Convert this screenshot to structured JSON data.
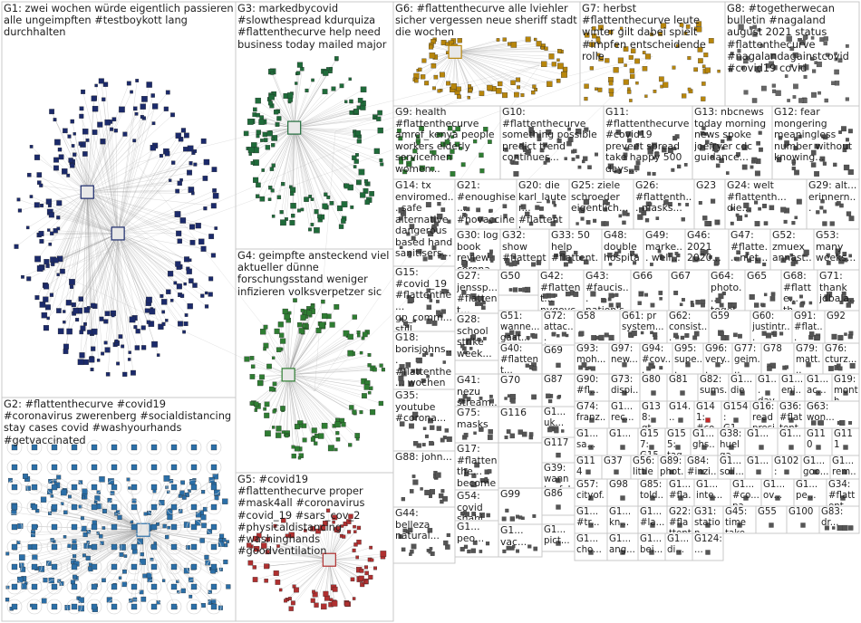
{
  "title": "",
  "groups": [
    {
      "label": "G1: zwei wochen würde eigentlich passieren alle ungeimpften #testboykott lang durchhalten",
      "col": "#1b2a6b"
    },
    {
      "label": "G2: #flattenthecurve #covid19 #coronavirus zwerenberg #socialdistancing stay cases covid #washyourhands #getvaccinated",
      "col": "#2b6fa8"
    },
    {
      "label": "G3: markedbycovid #slowthespread kdurquiza #flattenthecurve help need business today mailed major",
      "col": "#1f6b3a"
    },
    {
      "label": "G4: geimpfte ansteckend viel aktueller dünne forschungsstand weniger infizieren volksverpetzer sic",
      "col": "#2e7d32"
    },
    {
      "label": "G5: #covid19 #flattenthecurve proper #mask4all #coronavirus #covid_19 #sars_cov_2 #physicaldistancing #washinghands #goodventilation",
      "col": "#b03030"
    },
    {
      "label": "G6: #flattenthecurve alle lviehler sicher vergessen neue sheriff stadt die wochen",
      "col": "#b8860b"
    },
    {
      "label": "G7: herbst #flattenthecurve leute winter gilt dabei spielt #impfen entscheidende rolle",
      "col": "#b8860b"
    },
    {
      "label": "G8: #togetherwecan bulletin #nagaland august 2021 status #flattenthecurve #nagalandagainstcovid #covid19 covid",
      "col": "#666666"
    },
    {
      "label": "G9: health #flattenthecurve amref_kenya people workers elderly servicemen women...",
      "col": "#2e7d32"
    },
    {
      "label": "G10: #flattenthecurve something possible predict trend continues...",
      "col": "#555555"
    },
    {
      "label": "G11: #flattenthecurve #covid19 prevent spread take happy 500 days...",
      "col": "#555555"
    },
    {
      "label": "G13: nbcnews today morning news spoke joefryer cdc guidance...",
      "col": "#555555"
    },
    {
      "label": "G12: fear mongering meaningless number without knowing...",
      "col": "#555555"
    },
    {
      "label": "G14: tx enviromed... safe alternative dangerous based hand sanitisers...",
      "col": "#555555"
    },
    {
      "label": "G21: #enoughise... #novaccine...",
      "col": "#555555"
    },
    {
      "label": "G20: die karl_lauter... #flattenthec...",
      "col": "#555555"
    },
    {
      "label": "G25: ziele schroeder eigentlich...",
      "col": "#555555"
    },
    {
      "label": "G26: #flattenth... masks...",
      "col": "#555555"
    },
    {
      "label": "G23",
      "col": "#555555"
    },
    {
      "label": "G24: welt #flattenth... die...",
      "col": "#555555"
    },
    {
      "label": "G29: alt... erinnern...",
      "col": "#555555"
    },
    {
      "label": "G15: #covid_19 #flattenthe... gp_comm... still...",
      "col": "#555555"
    },
    {
      "label": "G30: log book review corona...",
      "col": "#555555"
    },
    {
      "label": "G32: show #flattent...",
      "col": "#555555"
    },
    {
      "label": "G33: 50 help #flattent...",
      "col": "#555555"
    },
    {
      "label": "G48: double hospita...",
      "col": "#555555"
    },
    {
      "label": "G49: marke... well...",
      "col": "#555555"
    },
    {
      "label": "G46: 2021 2020...",
      "col": "#555555"
    },
    {
      "label": "G47: #flatte... niet...",
      "col": "#555555"
    },
    {
      "label": "G52: zmuex annast...",
      "col": "#555555"
    },
    {
      "label": "G53: many weeks...",
      "col": "#555555"
    },
    {
      "label": "G27: jenssp... #flattent... man...",
      "col": "#555555"
    },
    {
      "label": "G50",
      "col": "#555555"
    },
    {
      "label": "G42: #flattent... nygovc...",
      "col": "#555555"
    },
    {
      "label": "G43: #faucis... nation's...",
      "col": "#555555"
    },
    {
      "label": "G66",
      "col": "#555555"
    },
    {
      "label": "G67",
      "col": "#555555"
    },
    {
      "label": "G64: photo... toget...",
      "col": "#555555"
    },
    {
      "label": "G65",
      "col": "#555555"
    },
    {
      "label": "G68: #flatte... th...",
      "col": "#555555"
    },
    {
      "label": "G71: thank jdbala...",
      "col": "#555555"
    },
    {
      "label": "G18: borisjohns... #flattenthe... wochen die",
      "col": "#555555"
    },
    {
      "label": "G51: wanne... gaat...",
      "col": "#555555"
    },
    {
      "label": "G72: attac... teena...",
      "col": "#555555"
    },
    {
      "label": "G58",
      "col": "#555555"
    },
    {
      "label": "G61: pr system...",
      "col": "#555555"
    },
    {
      "label": "G62: consist...",
      "col": "#555555"
    },
    {
      "label": "G59",
      "col": "#555555"
    },
    {
      "label": "G60: justintr...",
      "col": "#555555"
    },
    {
      "label": "G91: #flat...",
      "col": "#555555"
    },
    {
      "label": "G92",
      "col": "#555555"
    },
    {
      "label": "G28: school strike week...",
      "col": "#555555"
    },
    {
      "label": "G69",
      "col": "#555555"
    },
    {
      "label": "G93: moh...",
      "col": "#555555"
    },
    {
      "label": "G97: new...",
      "col": "#555555"
    },
    {
      "label": "G94: #cov...",
      "col": "#555555"
    },
    {
      "label": "G95: supe...",
      "col": "#555555"
    },
    {
      "label": "G96: very...",
      "col": "#555555"
    },
    {
      "label": "G77: geim...",
      "col": "#555555"
    },
    {
      "label": "G78",
      "col": "#555555"
    },
    {
      "label": "G79: matt...",
      "col": "#555555"
    },
    {
      "label": "G76: cturz...",
      "col": "#555555"
    },
    {
      "label": "G40: #flattent...",
      "col": "#555555"
    },
    {
      "label": "G90: #fl...",
      "col": "#555555"
    },
    {
      "label": "G73: dispi...",
      "col": "#555555"
    },
    {
      "label": "G80",
      "col": "#555555"
    },
    {
      "label": "G81",
      "col": "#555555"
    },
    {
      "label": "G82: sums...",
      "col": "#555555"
    },
    {
      "label": "G1... die",
      "col": "#555555"
    },
    {
      "label": "G1... day...",
      "col": "#555555"
    },
    {
      "label": "G1... enj...",
      "col": "#555555"
    },
    {
      "label": "G1... ac...",
      "col": "#555555"
    },
    {
      "label": "G19: month happy turbulent times...",
      "col": "#555555"
    },
    {
      "label": "G35: youtube #corona...",
      "col": "#555555"
    },
    {
      "label": "G41: nezu stream...",
      "col": "#555555"
    },
    {
      "label": "G70",
      "col": "#555555"
    },
    {
      "label": "G87",
      "col": "#555555"
    },
    {
      "label": "G74: franz...",
      "col": "#555555"
    },
    {
      "label": "G1... rec...",
      "col": "#555555"
    },
    {
      "label": "G138: gt...",
      "col": "#555555"
    },
    {
      "label": "G14...",
      "col": "#555555"
    },
    {
      "label": "G141: #co...",
      "col": "#c62828"
    },
    {
      "label": "G154: G1...",
      "col": "#555555"
    },
    {
      "label": "G16: read president statement regarding...",
      "col": "#555555"
    },
    {
      "label": "G36: #flattent... #masku...",
      "col": "#555555"
    },
    {
      "label": "G63: won...",
      "col": "#555555"
    },
    {
      "label": "G88: john...",
      "col": "#555555"
    },
    {
      "label": "G75: masks",
      "col": "#555555"
    },
    {
      "label": "G1... uk...",
      "col": "#555555"
    },
    {
      "label": "G1... sa...",
      "col": "#555555"
    },
    {
      "label": "G1...",
      "col": "#555555"
    },
    {
      "label": "G157: G15... läuft...",
      "col": "#555555"
    },
    {
      "label": "G155: tag...",
      "col": "#555555"
    },
    {
      "label": "G1... ghs...",
      "col": "#555555"
    },
    {
      "label": "G38: huelga clima...",
      "col": "#555555"
    },
    {
      "label": "G1...",
      "col": "#555555"
    },
    {
      "label": "G1...",
      "col": "#555555"
    },
    {
      "label": "G110",
      "col": "#555555"
    },
    {
      "label": "G111",
      "col": "#555555"
    },
    {
      "label": "G116",
      "col": "#555555"
    },
    {
      "label": "G117",
      "col": "#555555"
    },
    {
      "label": "G114",
      "col": "#555555"
    },
    {
      "label": "G37",
      "col": "#555555"
    },
    {
      "label": "G56: little healt...",
      "col": "#555555"
    },
    {
      "label": "G89: phot...",
      "col": "#555555"
    },
    {
      "label": "G84: #inzi...",
      "col": "#555555"
    },
    {
      "label": "G1... soll...",
      "col": "#555555"
    },
    {
      "label": "G1...",
      "col": "#555555"
    },
    {
      "label": "G102: G1... first...",
      "col": "#555555"
    },
    {
      "label": "G1... goo...",
      "col": "#555555"
    },
    {
      "label": "G1... rem...",
      "col": "#555555"
    },
    {
      "label": "G17: #flattenthe... become #stayatho...",
      "col": "#555555"
    },
    {
      "label": "G39: wann teufel...",
      "col": "#555555"
    },
    {
      "label": "G57: cityof... kelleri...",
      "col": "#555555"
    },
    {
      "label": "G98",
      "col": "#555555"
    },
    {
      "label": "G85: told...",
      "col": "#555555"
    },
    {
      "label": "G1... #fla...",
      "col": "#555555"
    },
    {
      "label": "G1... inte...",
      "col": "#555555"
    },
    {
      "label": "G1... #co... pa...",
      "col": "#555555"
    },
    {
      "label": "G1... ov...",
      "col": "#555555"
    },
    {
      "label": "G1... pe...",
      "col": "#555555"
    },
    {
      "label": "G34: #flattent... m_b_pe...",
      "col": "#555555"
    },
    {
      "label": "G44: belleza natural...",
      "col": "#555555"
    },
    {
      "label": "G54: covid shahi...",
      "col": "#555555"
    },
    {
      "label": "G99",
      "col": "#555555"
    },
    {
      "label": "G86",
      "col": "#555555"
    },
    {
      "label": "G1... #tr...",
      "col": "#555555"
    },
    {
      "label": "G1... kn...",
      "col": "#555555"
    },
    {
      "label": "G1... #la...",
      "col": "#555555"
    },
    {
      "label": "G22: #flattenthe... #wsu #covid19...",
      "col": "#555555"
    },
    {
      "label": "G31: station #flattent...",
      "col": "#555555"
    },
    {
      "label": "G45: time take...",
      "col": "#555555"
    },
    {
      "label": "G55",
      "col": "#555555"
    },
    {
      "label": "G100",
      "col": "#555555"
    },
    {
      "label": "G83: dr...",
      "col": "#555555"
    },
    {
      "label": "G1... peo...",
      "col": "#555555"
    },
    {
      "label": "G1... vac...",
      "col": "#555555"
    },
    {
      "label": "G1... pict...",
      "col": "#555555"
    },
    {
      "label": "G1... cho...",
      "col": "#555555"
    },
    {
      "label": "G1... ang...",
      "col": "#555555"
    },
    {
      "label": "G1... bei...",
      "col": "#555555"
    },
    {
      "label": "G1... di...",
      "col": "#555555"
    },
    {
      "label": "G124:...",
      "col": "#555555"
    }
  ]
}
